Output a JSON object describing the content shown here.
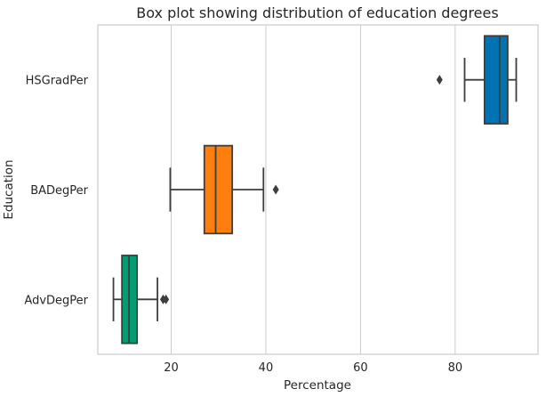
{
  "chart_data": {
    "type": "box",
    "orientation": "horizontal",
    "title": "Box plot showing distribution of education degrees",
    "xlabel": "Percentage",
    "ylabel": "Education",
    "xlim": [
      4.5,
      97.5
    ],
    "xticks": [
      "20",
      "40",
      "60",
      "80"
    ],
    "xtick_values": [
      20,
      40,
      60,
      80
    ],
    "grid": "vertical",
    "categories": [
      "HSGradPer",
      "BADegPer",
      "AdvDegPer"
    ],
    "boxes": [
      {
        "category": "HSGradPer",
        "color": "#0173B2",
        "whisker_low": 82.0,
        "q1": 86.2,
        "median": 89.4,
        "q3": 91.1,
        "whisker_high": 92.9,
        "outliers": [
          76.7
        ]
      },
      {
        "category": "BADegPer",
        "color": "#FF7F0E",
        "whisker_low": 19.8,
        "q1": 27.0,
        "median": 29.4,
        "q3": 32.9,
        "whisker_high": 39.5,
        "outliers": [
          42.1
        ]
      },
      {
        "category": "AdvDegPer",
        "color": "#029E73",
        "whisker_low": 7.8,
        "q1": 9.6,
        "median": 11.1,
        "q3": 12.8,
        "whisker_high": 17.1,
        "outliers": [
          18.3,
          18.9
        ]
      }
    ],
    "line_color": "#3d3d3d",
    "grid_color": "#cccccc"
  }
}
